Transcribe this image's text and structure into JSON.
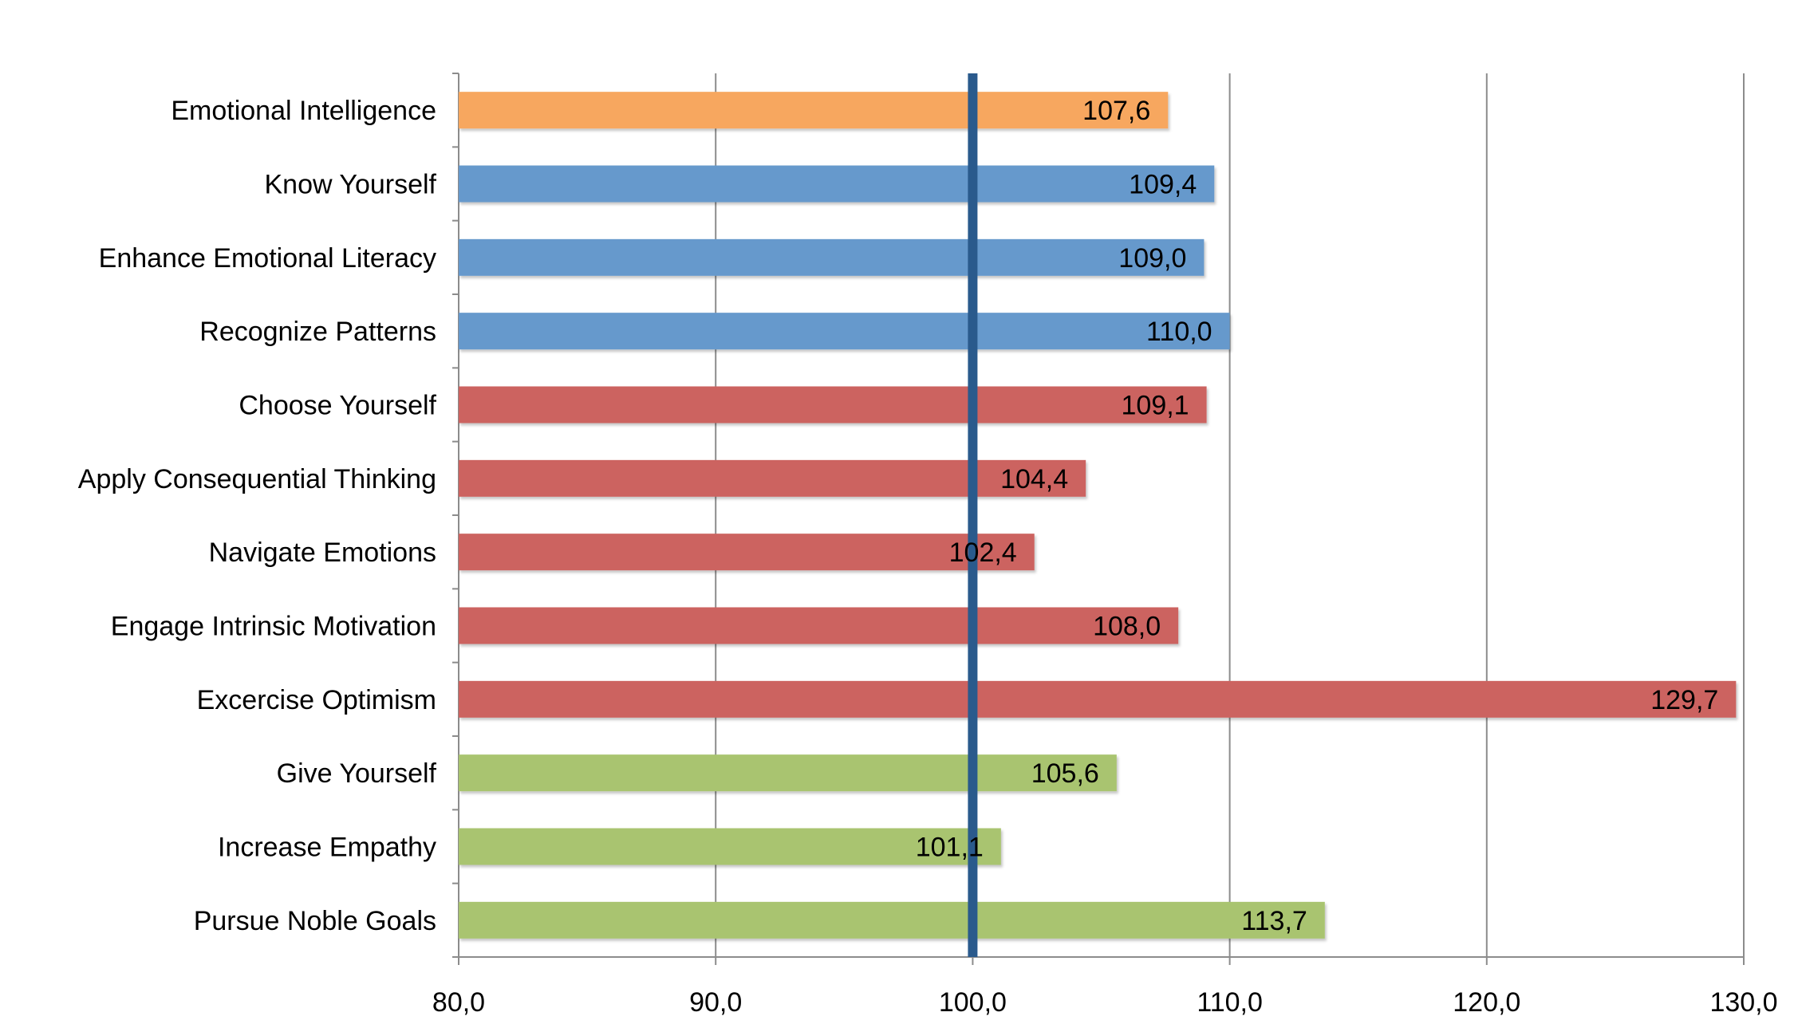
{
  "chart_data": {
    "type": "bar",
    "orientation": "horizontal",
    "title": "",
    "xlabel": "",
    "ylabel": "",
    "xlim": [
      80,
      130
    ],
    "x_ticks": [
      80,
      90,
      100,
      110,
      120,
      130
    ],
    "x_tick_labels": [
      "80,0",
      "90,0",
      "100,0",
      "110,0",
      "120,0",
      "130,0"
    ],
    "grid": "vertical",
    "legend": "none",
    "reference_line": {
      "value": 100,
      "color": "#2a5a8c"
    },
    "categories": [
      "Emotional Intelligence",
      "Know Yourself",
      "Enhance Emotional Literacy",
      "Recognize Patterns",
      "Choose Yourself",
      "Apply Consequential Thinking",
      "Navigate Emotions",
      "Engage Intrinsic Motivation",
      "Excercise Optimism",
      "Give Yourself",
      "Increase Empathy",
      "Pursue Noble Goals"
    ],
    "values": [
      107.6,
      109.4,
      109.0,
      110.0,
      109.1,
      104.4,
      102.4,
      108.0,
      129.7,
      105.6,
      101.1,
      113.7
    ],
    "value_labels": [
      "107,6",
      "109,4",
      "109,0",
      "110,0",
      "109,1",
      "104,4",
      "102,4",
      "108,0",
      "129,7",
      "105,6",
      "101,1",
      "113,7"
    ],
    "colors": [
      "#f7a75f",
      "#6699cc",
      "#6699cc",
      "#6699cc",
      "#cc6460",
      "#cc6460",
      "#cc6460",
      "#cc6460",
      "#cc6460",
      "#a9c46f",
      "#a9c46f",
      "#a9c46f"
    ]
  }
}
